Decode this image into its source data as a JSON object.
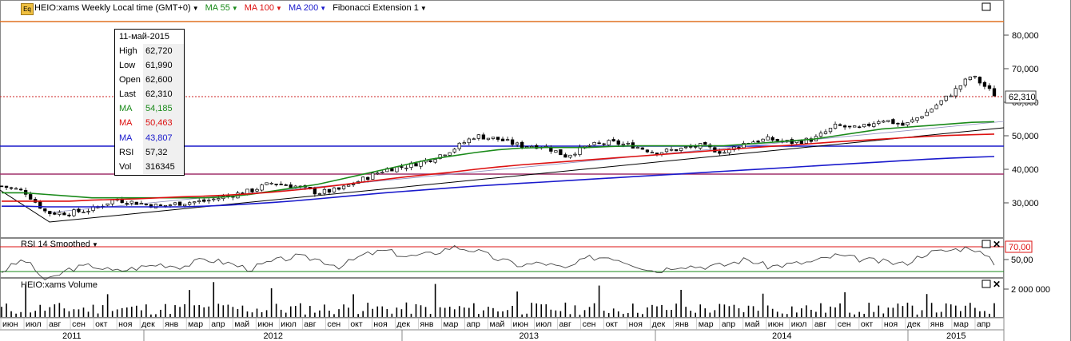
{
  "header": {
    "symbol_label": "HEIO:xams Weekly Local time (GMT+0)",
    "ma55_label": "MA 55",
    "ma100_label": "MA 100",
    "ma200_label": "MA 200",
    "fib_label": "Fibonacci Extension 1",
    "eq_icon_text": "Eq"
  },
  "tooltip": {
    "date": "11-май-2015",
    "rows": [
      {
        "label": "High",
        "value": "62,720",
        "color": "#000000"
      },
      {
        "label": "Low",
        "value": "61,990",
        "color": "#000000"
      },
      {
        "label": "Open",
        "value": "62,600",
        "color": "#000000"
      },
      {
        "label": "Last",
        "value": "62,310",
        "color": "#000000"
      },
      {
        "label": "MA",
        "value": "54,185",
        "color": "#1a8a1a"
      },
      {
        "label": "MA",
        "value": "50,463",
        "color": "#dd1111"
      },
      {
        "label": "MA",
        "value": "43,807",
        "color": "#1a1acc"
      },
      {
        "label": "RSI",
        "value": "57,32",
        "color": "#000000"
      },
      {
        "label": "Vol",
        "value": "316345",
        "color": "#000000"
      }
    ]
  },
  "price_axis": {
    "ticks": [
      "80,000",
      "70,000",
      "60,000",
      "50,000",
      "40,000",
      "30,000"
    ],
    "last_price_label": "62,310"
  },
  "rsi_panel": {
    "title": "RSI 14 Smoothed",
    "upper_label": "70,00",
    "mid_label": "50,00"
  },
  "volume_panel": {
    "title": "HEIO:xams Volume",
    "axis_label": "2 000 000"
  },
  "time_axis": {
    "months": [
      "июн",
      "июл",
      "авг",
      "сен",
      "окт",
      "ноя",
      "дек",
      "янв",
      "мар",
      "апр",
      "май",
      "июн",
      "июл",
      "авг",
      "сен",
      "окт",
      "ноя",
      "дек",
      "янв",
      "мар",
      "апр",
      "май",
      "июн",
      "июл",
      "авг",
      "сен",
      "окт",
      "ноя",
      "дек",
      "янв",
      "мар",
      "апр",
      "май",
      "июн",
      "июл",
      "авг",
      "сен",
      "окт",
      "ноя",
      "дек",
      "янв",
      "мар",
      "апр"
    ],
    "years": [
      "2011",
      "2012",
      "2013",
      "2014",
      "2015"
    ]
  },
  "colors": {
    "ma55": "#1a8a1a",
    "ma100": "#dd1111",
    "ma200": "#1a1acc",
    "fib_orange": "#e07020",
    "fib_blue": "#1a1acc",
    "fib_purple": "#a0306a"
  },
  "chart_data": {
    "type": "line",
    "series": [
      {
        "name": "HEIO:xams",
        "values": [
          35.0,
          33.5,
          27.0,
          27.0,
          28.0,
          31.0,
          30.0,
          29.0,
          30.0,
          30.5,
          32.0,
          33.5,
          36.0,
          35.0,
          33.0,
          34.0,
          37.0,
          40.0,
          41.0,
          43.0,
          46.0,
          50.0,
          49.0,
          47.0,
          47.0,
          44.0,
          47.0,
          48.0,
          47.0,
          45.0,
          46.0,
          47.0,
          45.0,
          48.0,
          49.0,
          48.0,
          49.0,
          53.0,
          52.0,
          55.0,
          53.0,
          57.0,
          62.0,
          68.0,
          62.3
        ]
      },
      {
        "name": "MA 55",
        "values": [
          33.0,
          33.0,
          32.5,
          32.0,
          31.5,
          31.5,
          31.5,
          31.5,
          31.5,
          31.5,
          31.8,
          32.5,
          33.5,
          34.5,
          35.5,
          37.0,
          38.5,
          40.0,
          41.5,
          43.0,
          44.0,
          45.0,
          45.8,
          46.3,
          46.5,
          46.5,
          46.5,
          46.8,
          47.0,
          47.0,
          47.0,
          47.0,
          47.0,
          47.5,
          48.0,
          48.5,
          49.0,
          50.0,
          51.0,
          52.0,
          52.5,
          53.0,
          53.5,
          54.0,
          54.2
        ]
      },
      {
        "name": "MA 100",
        "values": [
          30.5,
          30.5,
          30.5,
          30.5,
          30.8,
          31.0,
          31.2,
          31.5,
          31.8,
          32.0,
          32.3,
          32.7,
          33.2,
          33.8,
          34.5,
          35.3,
          36.2,
          37.0,
          37.8,
          38.5,
          39.2,
          40.0,
          40.7,
          41.3,
          41.8,
          42.3,
          42.8,
          43.3,
          43.8,
          44.3,
          44.8,
          45.3,
          45.8,
          46.3,
          46.8,
          47.2,
          47.7,
          48.2,
          48.6,
          49.0,
          49.4,
          49.8,
          50.1,
          50.3,
          50.5
        ]
      },
      {
        "name": "MA 200",
        "values": [
          29.0,
          29.0,
          28.8,
          28.8,
          28.8,
          28.8,
          28.8,
          28.8,
          28.8,
          29.0,
          29.3,
          29.7,
          30.1,
          30.6,
          31.2,
          31.8,
          32.4,
          33.0,
          33.5,
          34.0,
          34.5,
          35.0,
          35.4,
          35.8,
          36.2,
          36.6,
          37.0,
          37.4,
          37.8,
          38.2,
          38.6,
          39.0,
          39.4,
          39.8,
          40.2,
          40.6,
          41.0,
          41.4,
          41.8,
          42.2,
          42.6,
          43.0,
          43.3,
          43.6,
          43.8
        ]
      }
    ],
    "ylim": [
      20,
      90
    ],
    "y_ticks": [
      30,
      40,
      50,
      60,
      70,
      80
    ],
    "rsi": {
      "values": [
        50,
        60,
        42,
        52,
        55,
        50,
        53,
        56,
        54,
        60,
        57,
        52,
        58,
        62,
        60,
        54,
        63,
        67,
        62,
        64,
        70,
        67,
        60,
        55,
        57,
        52,
        61,
        62,
        56,
        50,
        55,
        54,
        55,
        60,
        54,
        56,
        58,
        63,
        60,
        58,
        56,
        65,
        67,
        70,
        57
      ],
      "levels": [
        70,
        50
      ]
    },
    "volume": {
      "axis_max": 2000000
    }
  }
}
